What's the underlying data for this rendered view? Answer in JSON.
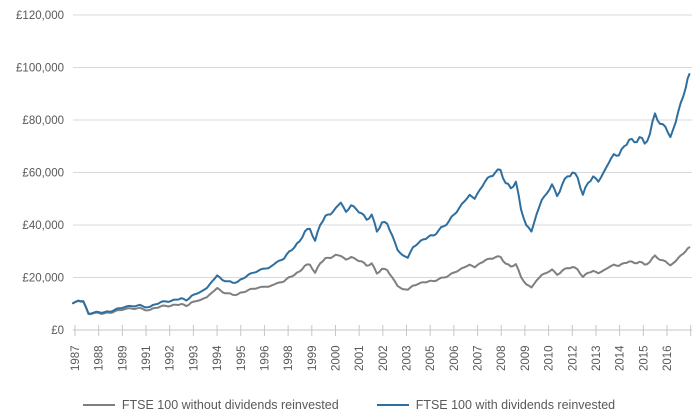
{
  "chart_data": {
    "type": "line",
    "title": "",
    "xlabel": "",
    "ylabel": "",
    "grid": "horizontal",
    "legend_position": "bottom",
    "ylim": [
      0,
      120000
    ],
    "ytick_step": 20000,
    "ytick_labels": [
      "£0",
      "£20,000",
      "£40,000",
      "£60,000",
      "£80,000",
      "£100,000",
      "£120,000"
    ],
    "xtick_labels": [
      "1987",
      "1988",
      "1989",
      "1991",
      "1992",
      "1993",
      "1994",
      "1995",
      "1996",
      "1998",
      "1999",
      "2000",
      "2001",
      "2002",
      "2003",
      "2005",
      "2006",
      "2007",
      "2008",
      "2009",
      "2010",
      "2012",
      "2013",
      "2014",
      "2015",
      "2016"
    ],
    "colors": {
      "grid": "#D9D9D9",
      "axis": "#C6C6C6",
      "tick_text": "#595959"
    },
    "x": [
      1987.0,
      1987.25,
      1987.5,
      1987.75,
      1988.0,
      1988.25,
      1988.5,
      1988.75,
      1989.0,
      1989.25,
      1989.5,
      1989.75,
      1990.0,
      1990.25,
      1990.5,
      1990.75,
      1991.0,
      1991.25,
      1991.5,
      1991.75,
      1992.0,
      1992.25,
      1992.5,
      1992.75,
      1993.0,
      1993.25,
      1993.5,
      1993.75,
      1994.0,
      1994.25,
      1994.5,
      1994.75,
      1995.0,
      1995.25,
      1995.5,
      1995.75,
      1996.0,
      1996.25,
      1996.5,
      1996.75,
      1997.0,
      1997.25,
      1997.5,
      1997.75,
      1998.0,
      1998.25,
      1998.5,
      1998.75,
      1999.0,
      1999.25,
      1999.5,
      1999.75,
      2000.0,
      2000.25,
      2000.5,
      2000.75,
      2001.0,
      2001.25,
      2001.5,
      2001.75,
      2002.0,
      2002.25,
      2002.5,
      2002.75,
      2003.0,
      2003.25,
      2003.5,
      2003.75,
      2004.0,
      2004.25,
      2004.5,
      2004.75,
      2005.0,
      2005.25,
      2005.5,
      2005.75,
      2006.0,
      2006.25,
      2006.5,
      2006.75,
      2007.0,
      2007.25,
      2007.5,
      2007.75,
      2008.0,
      2008.25,
      2008.5,
      2008.75,
      2009.0,
      2009.25,
      2009.5,
      2009.75,
      2010.0,
      2010.25,
      2010.5,
      2010.75,
      2011.0,
      2011.25,
      2011.5,
      2011.75,
      2012.0,
      2012.25,
      2012.5,
      2012.75,
      2013.0,
      2013.25,
      2013.5,
      2013.75,
      2014.0,
      2014.25,
      2014.5,
      2014.75,
      2015.0,
      2015.25,
      2015.5,
      2015.75,
      2016.0,
      2016.25,
      2016.5,
      2016.75,
      2016.92
    ],
    "series": [
      {
        "name": "FTSE 100 without dividends reinvested",
        "color": "#7F7F7F",
        "values": [
          10200,
          11100,
          10800,
          6100,
          6400,
          6500,
          6300,
          6600,
          7000,
          7600,
          7900,
          8300,
          8000,
          8500,
          7500,
          7700,
          8400,
          9000,
          9200,
          9200,
          9600,
          9900,
          9100,
          10500,
          11000,
          11700,
          12500,
          14300,
          16000,
          14400,
          14000,
          13400,
          13600,
          14400,
          15200,
          15700,
          16100,
          16500,
          16500,
          17300,
          18100,
          18500,
          20200,
          21000,
          22300,
          24500,
          24900,
          21800,
          25400,
          27400,
          27400,
          28700,
          28200,
          26800,
          27800,
          26800,
          26200,
          24500,
          25400,
          21500,
          23300,
          22800,
          20000,
          16800,
          15600,
          15300,
          16900,
          17500,
          18200,
          18500,
          18600,
          19400,
          20000,
          20800,
          21900,
          22900,
          23900,
          24900,
          23900,
          25400,
          26500,
          27200,
          27700,
          27900,
          25300,
          24200,
          25100,
          20200,
          17400,
          16200,
          18800,
          21000,
          21800,
          23100,
          21000,
          22600,
          23600,
          24000,
          23000,
          20200,
          21800,
          22500,
          21600,
          22700,
          23800,
          24900,
          24400,
          25500,
          26100,
          25500,
          26000,
          24900,
          25900,
          28400,
          26700,
          26200,
          24600,
          26200,
          28400,
          30100,
          31500
        ]
      },
      {
        "name": "FTSE 100 with dividends reinvested",
        "color": "#2E6F9F",
        "values": [
          10200,
          11200,
          11000,
          6300,
          6600,
          6800,
          6700,
          7000,
          7600,
          8300,
          8700,
          9200,
          9000,
          9600,
          8600,
          8900,
          9800,
          10600,
          10900,
          11000,
          11600,
          12100,
          11200,
          13000,
          13800,
          14800,
          16000,
          18500,
          20800,
          19000,
          18600,
          18000,
          18400,
          19600,
          21000,
          21800,
          22600,
          23400,
          23600,
          25000,
          26400,
          27200,
          30000,
          31500,
          33800,
          37500,
          38500,
          34000,
          40000,
          43500,
          44000,
          46500,
          48500,
          45000,
          47500,
          46000,
          44500,
          42000,
          44000,
          37500,
          41000,
          40500,
          36000,
          30500,
          28500,
          27500,
          31500,
          33000,
          34500,
          35500,
          36000,
          38000,
          39500,
          41500,
          44000,
          46500,
          49000,
          51500,
          50000,
          53500,
          56500,
          58500,
          60000,
          61000,
          56000,
          54000,
          56500,
          46000,
          40000,
          37500,
          44000,
          49500,
          52000,
          55500,
          51000,
          55500,
          58500,
          60000,
          58000,
          51500,
          56000,
          58500,
          56500,
          60000,
          63500,
          67000,
          66500,
          70000,
          72500,
          71500,
          73500,
          71000,
          74500,
          82500,
          78500,
          77500,
          73500,
          79000,
          86500,
          92500,
          97500
        ]
      }
    ]
  }
}
